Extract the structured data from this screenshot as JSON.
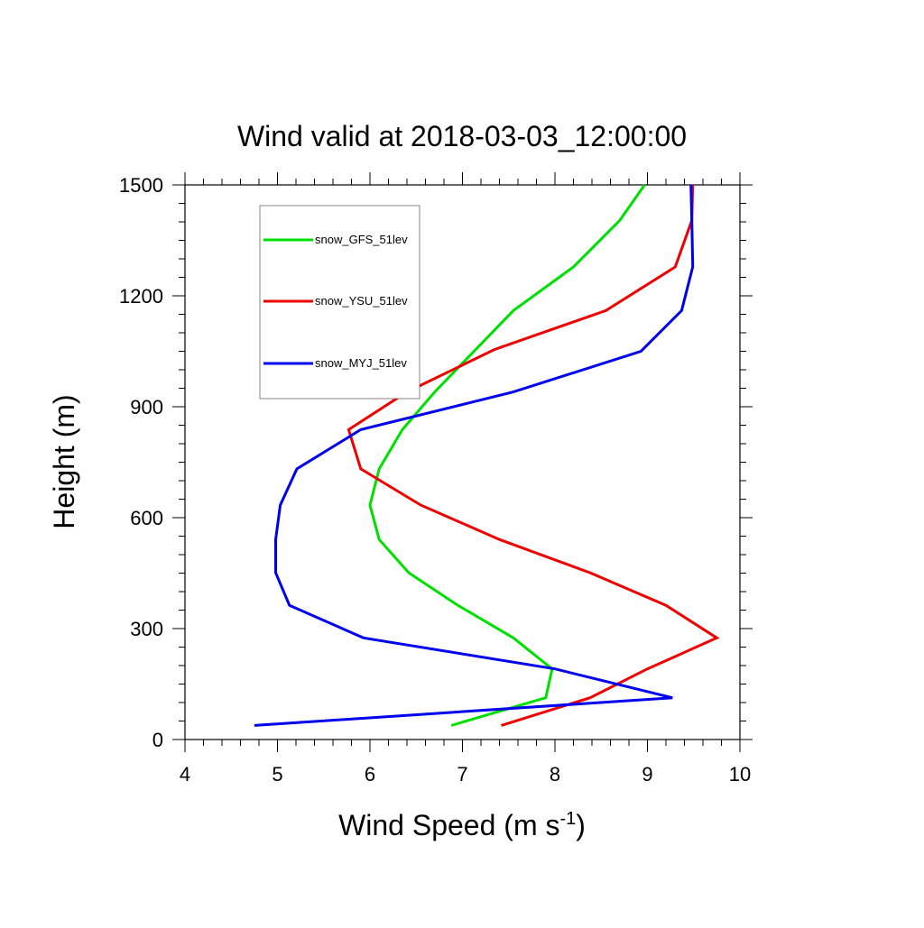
{
  "chart_data": {
    "type": "line",
    "title": "Wind valid at 2018-03-03_12:00:00",
    "xlabel": {
      "base": "Wind Speed (m s",
      "sup": "-1",
      "close": ")"
    },
    "ylabel": "Height (m)",
    "xlim": [
      4,
      10
    ],
    "ylim": [
      0,
      1500
    ],
    "xticks": [
      4,
      5,
      6,
      7,
      8,
      9,
      10
    ],
    "yticks": [
      0,
      300,
      600,
      900,
      1200,
      1500
    ],
    "xtick_labels": [
      "4",
      "5",
      "6",
      "7",
      "8",
      "9",
      "10"
    ],
    "ytick_labels": [
      "0",
      "300",
      "600",
      "900",
      "1200",
      "1500"
    ],
    "x_minor_step": 0.2,
    "y_minor_step": 50,
    "grid": false,
    "legend_position": "upper-left",
    "series": [
      {
        "name": "snow_GFS_51lev",
        "color": "#00e000",
        "points": [
          [
            6.88,
            38
          ],
          [
            7.9,
            113
          ],
          [
            7.97,
            191
          ],
          [
            7.55,
            275
          ],
          [
            6.95,
            363
          ],
          [
            6.42,
            451
          ],
          [
            6.1,
            541
          ],
          [
            6.0,
            634
          ],
          [
            6.1,
            732
          ],
          [
            6.35,
            838
          ],
          [
            6.7,
            940
          ],
          [
            7.55,
            1160
          ],
          [
            8.2,
            1278
          ],
          [
            8.7,
            1404
          ],
          [
            8.97,
            1500
          ]
        ]
      },
      {
        "name": "snow_YSU_51lev",
        "color": "#ee0000",
        "points": [
          [
            7.42,
            38
          ],
          [
            8.38,
            113
          ],
          [
            9.0,
            191
          ],
          [
            9.75,
            275
          ],
          [
            9.2,
            363
          ],
          [
            8.38,
            451
          ],
          [
            7.4,
            541
          ],
          [
            6.55,
            634
          ],
          [
            5.9,
            732
          ],
          [
            5.77,
            838
          ],
          [
            6.4,
            940
          ],
          [
            7.35,
            1055
          ],
          [
            8.55,
            1160
          ],
          [
            9.3,
            1278
          ],
          [
            9.48,
            1404
          ],
          [
            9.49,
            1500
          ]
        ]
      },
      {
        "name": "snow_MYJ_51lev",
        "color": "#0000ee",
        "points": [
          [
            4.75,
            38
          ],
          [
            9.27,
            113
          ],
          [
            8.0,
            191
          ],
          [
            5.93,
            275
          ],
          [
            5.13,
            363
          ],
          [
            4.98,
            451
          ],
          [
            4.98,
            541
          ],
          [
            5.03,
            634
          ],
          [
            5.21,
            732
          ],
          [
            5.9,
            838
          ],
          [
            7.55,
            940
          ],
          [
            8.93,
            1050
          ],
          [
            9.37,
            1160
          ],
          [
            9.49,
            1278
          ],
          [
            9.48,
            1404
          ],
          [
            9.47,
            1500
          ]
        ]
      }
    ]
  }
}
